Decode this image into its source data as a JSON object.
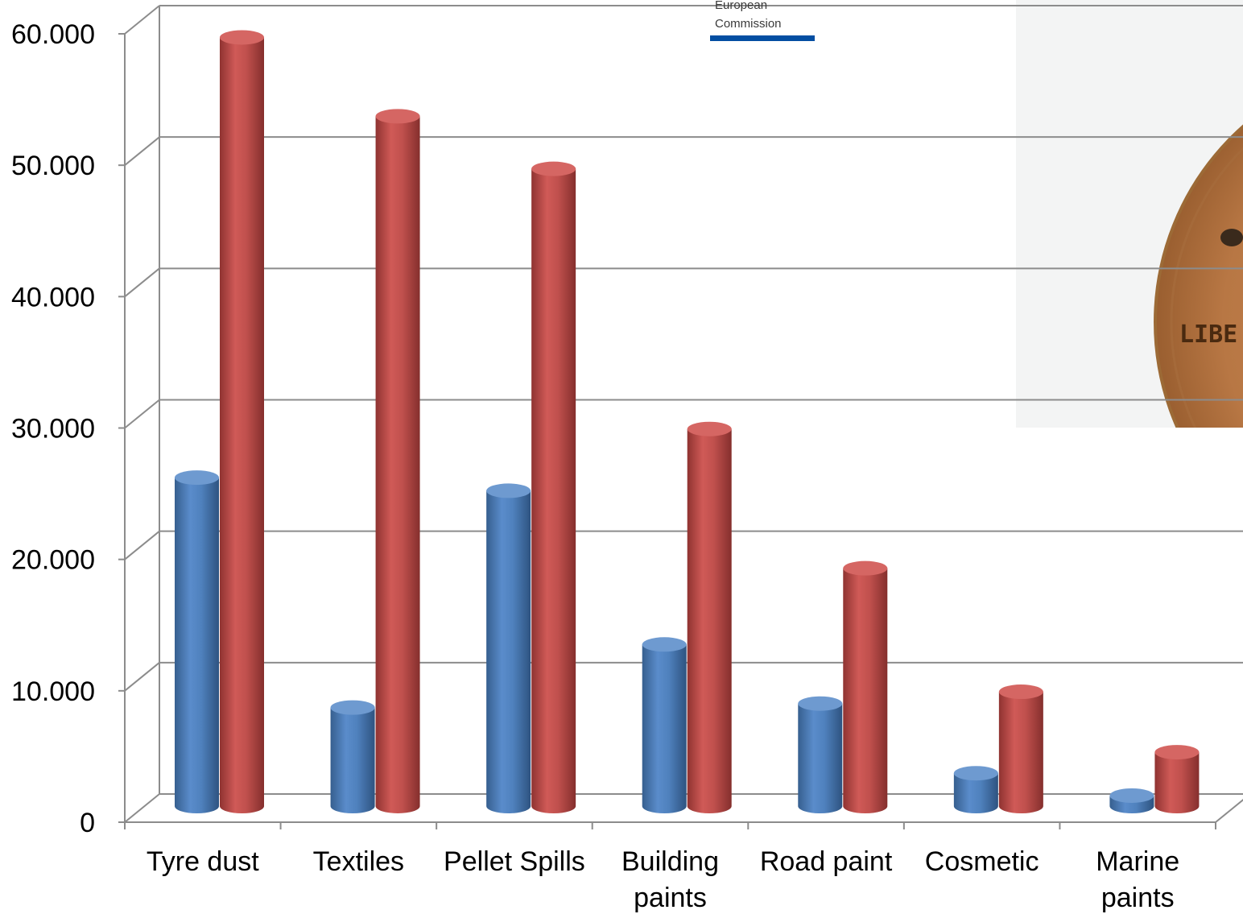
{
  "logo": {
    "line1": "European",
    "line2": "Commission",
    "bar_color": "#034ea2"
  },
  "photo": {
    "coin_text": "LIBE"
  },
  "chart_data": {
    "type": "bar",
    "style": "3d-cylinder",
    "categories": [
      "Tyre dust",
      "Textiles",
      "Pellet Spills",
      "Building paints",
      "Road paint",
      "Cosmetic",
      "Marine paints"
    ],
    "category_lines": [
      [
        "Tyre dust"
      ],
      [
        "Textiles"
      ],
      [
        "Pellet Spills"
      ],
      [
        "Building",
        "paints"
      ],
      [
        "Road paint"
      ],
      [
        "Cosmetic"
      ],
      [
        "Marine",
        "paints"
      ]
    ],
    "series": [
      {
        "color": "#4f81bd",
        "values": [
          25000,
          7500,
          24000,
          12300,
          7800,
          2500,
          800
        ]
      },
      {
        "color": "#c0504d",
        "values": [
          58500,
          52500,
          48500,
          28700,
          18100,
          8700,
          4100
        ]
      }
    ],
    "yticks": [
      "0",
      "10.000",
      "20.000",
      "30.000",
      "40.000",
      "50.000",
      "60.000"
    ],
    "ylim": [
      0,
      60000
    ],
    "title": "",
    "xlabel": "",
    "ylabel": "",
    "grid": true,
    "legend": "none"
  }
}
